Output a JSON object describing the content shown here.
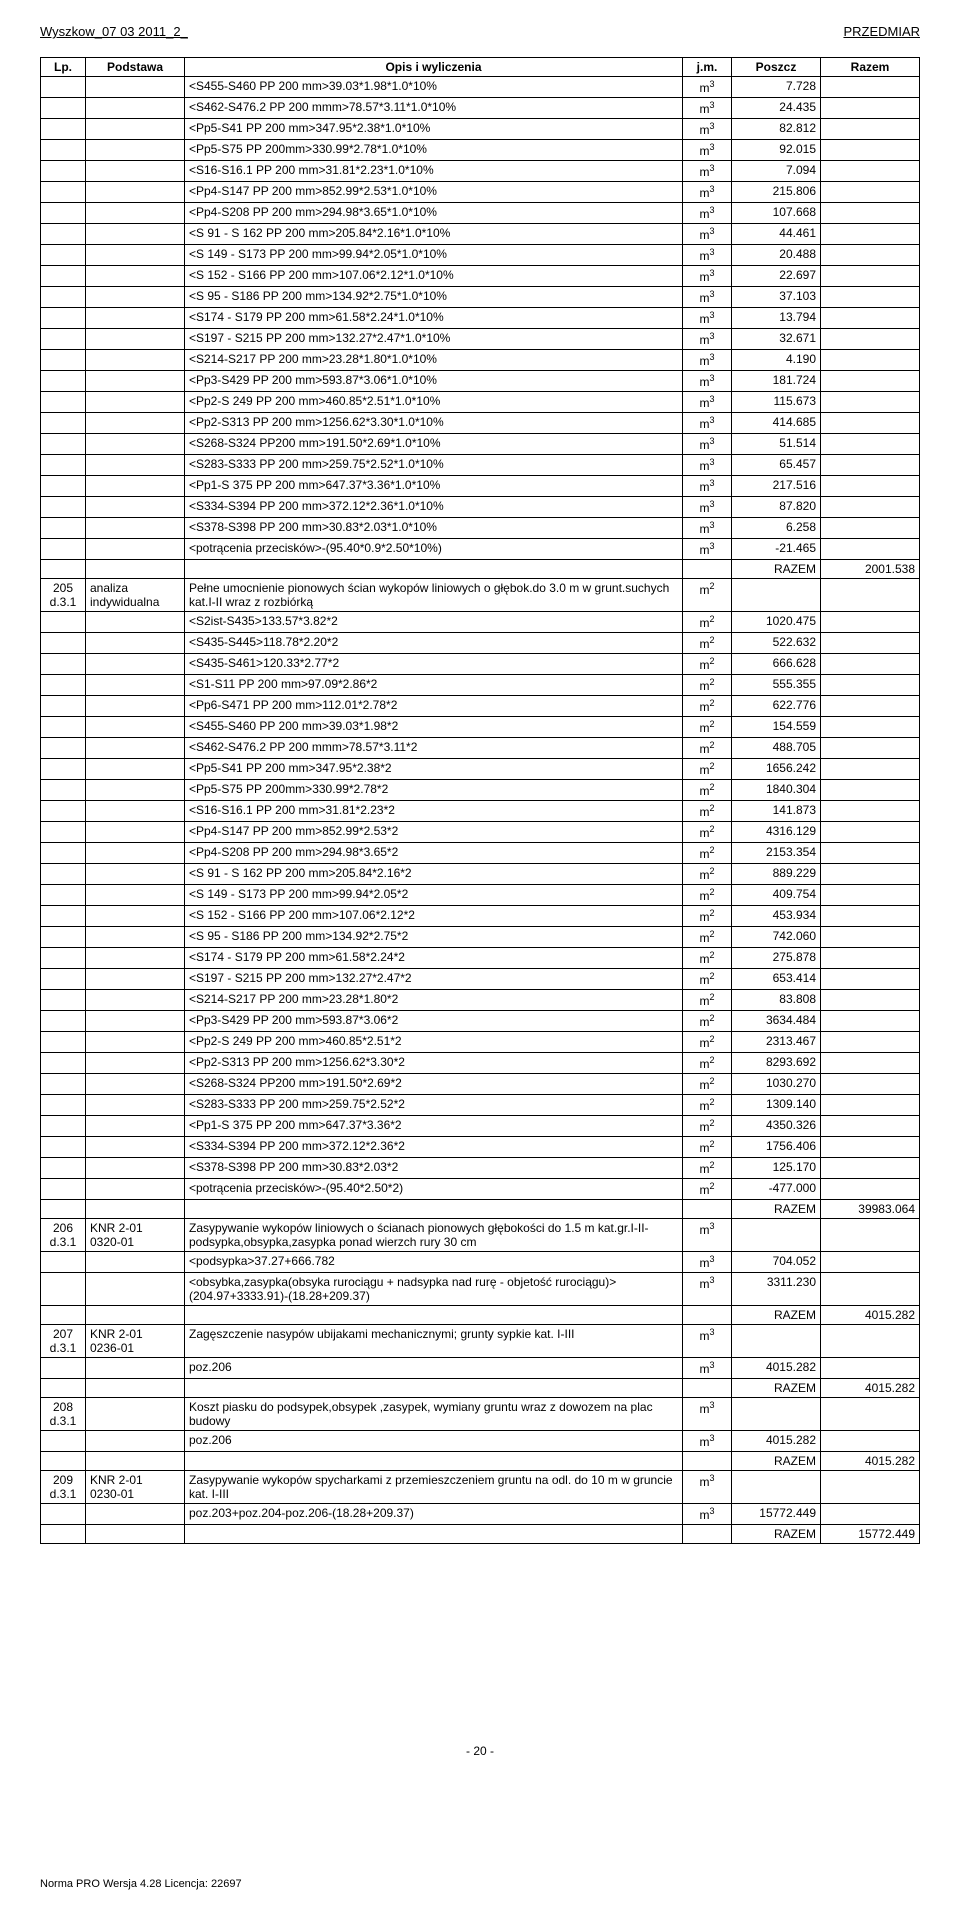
{
  "header": {
    "left": "Wyszkow_07 03 2011_2_",
    "right": "PRZEDMIAR"
  },
  "columns": [
    "Lp.",
    "Podstawa",
    "Opis i wyliczenia",
    "j.m.",
    "Poszcz",
    "Razem"
  ],
  "footer": {
    "pageNum": "- 20 -",
    "norma": "Norma PRO Wersja 4.28 Licencja: 22697"
  },
  "block0": {
    "lines": [
      {
        "o": "<S455-S460 PP 200 mm>39.03*1.98*1.0*10%",
        "jm": "m3",
        "v": "7.728"
      },
      {
        "o": "<S462-S476.2 PP 200 mmm>78.57*3.11*1.0*10%",
        "jm": "m3",
        "v": "24.435"
      },
      {
        "o": "<Pp5-S41 PP 200 mm>347.95*2.38*1.0*10%",
        "jm": "m3",
        "v": "82.812"
      },
      {
        "o": "<Pp5-S75 PP 200mm>330.99*2.78*1.0*10%",
        "jm": "m3",
        "v": "92.015"
      },
      {
        "o": "<S16-S16.1 PP 200 mm>31.81*2.23*1.0*10%",
        "jm": "m3",
        "v": "7.094"
      },
      {
        "o": "<Pp4-S147 PP 200 mm>852.99*2.53*1.0*10%",
        "jm": "m3",
        "v": "215.806"
      },
      {
        "o": "<Pp4-S208 PP 200 mm>294.98*3.65*1.0*10%",
        "jm": "m3",
        "v": "107.668"
      },
      {
        "o": "<S 91 - S 162 PP 200 mm>205.84*2.16*1.0*10%",
        "jm": "m3",
        "v": "44.461"
      },
      {
        "o": "<S 149 - S173 PP 200 mm>99.94*2.05*1.0*10%",
        "jm": "m3",
        "v": "20.488"
      },
      {
        "o": "<S 152 - S166 PP 200 mm>107.06*2.12*1.0*10%",
        "jm": "m3",
        "v": "22.697"
      },
      {
        "o": "<S 95 - S186 PP 200 mm>134.92*2.75*1.0*10%",
        "jm": "m3",
        "v": "37.103"
      },
      {
        "o": "<S174 - S179 PP 200 mm>61.58*2.24*1.0*10%",
        "jm": "m3",
        "v": "13.794"
      },
      {
        "o": "<S197 - S215 PP 200 mm>132.27*2.47*1.0*10%",
        "jm": "m3",
        "v": "32.671"
      },
      {
        "o": "<S214-S217 PP 200 mm>23.28*1.80*1.0*10%",
        "jm": "m3",
        "v": "4.190"
      },
      {
        "o": "<Pp3-S429 PP 200 mm>593.87*3.06*1.0*10%",
        "jm": "m3",
        "v": "181.724"
      },
      {
        "o": "<Pp2-S 249 PP 200 mm>460.85*2.51*1.0*10%",
        "jm": "m3",
        "v": "115.673"
      },
      {
        "o": "<Pp2-S313 PP 200 mm>1256.62*3.30*1.0*10%",
        "jm": "m3",
        "v": "414.685"
      },
      {
        "o": "<S268-S324 PP200 mm>191.50*2.69*1.0*10%",
        "jm": "m3",
        "v": "51.514"
      },
      {
        "o": "<S283-S333 PP 200 mm>259.75*2.52*1.0*10%",
        "jm": "m3",
        "v": "65.457"
      },
      {
        "o": "<Pp1-S 375 PP 200 mm>647.37*3.36*1.0*10%",
        "jm": "m3",
        "v": "217.516"
      },
      {
        "o": "<S334-S394 PP 200 mm>372.12*2.36*1.0*10%",
        "jm": "m3",
        "v": "87.820"
      },
      {
        "o": "<S378-S398 PP 200 mm>30.83*2.03*1.0*10%",
        "jm": "m3",
        "v": "6.258"
      },
      {
        "o": "<potrącenia przecisków>-(95.40*0.9*2.50*10%)",
        "jm": "m3",
        "v": "-21.465"
      }
    ],
    "razemLabel": "RAZEM",
    "razemValue": "2001.538"
  },
  "pos205": {
    "lp": "205\nd.3.1",
    "pod": "analiza indywidualna",
    "opis": "Pełne umocnienie pionowych ścian wykopów liniowych o głębok.do 3.0 m  w grunt.suchych kat.I-II wraz z rozbiórką",
    "jm": "m2",
    "lines": [
      {
        "o": "<S2ist-S435>133.57*3.82*2",
        "jm": "m2",
        "v": "1020.475"
      },
      {
        "o": "<S435-S445>118.78*2.20*2",
        "jm": "m2",
        "v": "522.632"
      },
      {
        "o": "<S435-S461>120.33*2.77*2",
        "jm": "m2",
        "v": "666.628"
      },
      {
        "o": "<S1-S11 PP 200 mm>97.09*2.86*2",
        "jm": "m2",
        "v": "555.355"
      },
      {
        "o": "<Pp6-S471 PP 200 mm>112.01*2.78*2",
        "jm": "m2",
        "v": "622.776"
      },
      {
        "o": "<S455-S460 PP 200 mm>39.03*1.98*2",
        "jm": "m2",
        "v": "154.559"
      },
      {
        "o": "<S462-S476.2 PP 200 mmm>78.57*3.11*2",
        "jm": "m2",
        "v": "488.705"
      },
      {
        "o": "<Pp5-S41 PP 200 mm>347.95*2.38*2",
        "jm": "m2",
        "v": "1656.242"
      },
      {
        "o": "<Pp5-S75 PP 200mm>330.99*2.78*2",
        "jm": "m2",
        "v": "1840.304"
      },
      {
        "o": "<S16-S16.1 PP 200 mm>31.81*2.23*2",
        "jm": "m2",
        "v": "141.873"
      },
      {
        "o": "<Pp4-S147 PP 200 mm>852.99*2.53*2",
        "jm": "m2",
        "v": "4316.129"
      },
      {
        "o": "<Pp4-S208 PP 200 mm>294.98*3.65*2",
        "jm": "m2",
        "v": "2153.354"
      },
      {
        "o": "<S 91 - S 162 PP 200 mm>205.84*2.16*2",
        "jm": "m2",
        "v": "889.229"
      },
      {
        "o": "<S 149 - S173 PP 200 mm>99.94*2.05*2",
        "jm": "m2",
        "v": "409.754"
      },
      {
        "o": "<S 152 - S166 PP 200 mm>107.06*2.12*2",
        "jm": "m2",
        "v": "453.934"
      },
      {
        "o": "<S 95 - S186 PP 200 mm>134.92*2.75*2",
        "jm": "m2",
        "v": "742.060"
      },
      {
        "o": "<S174 - S179 PP 200 mm>61.58*2.24*2",
        "jm": "m2",
        "v": "275.878"
      },
      {
        "o": "<S197 - S215 PP 200 mm>132.27*2.47*2",
        "jm": "m2",
        "v": "653.414"
      },
      {
        "o": "<S214-S217 PP 200 mm>23.28*1.80*2",
        "jm": "m2",
        "v": "83.808"
      },
      {
        "o": "<Pp3-S429 PP 200 mm>593.87*3.06*2",
        "jm": "m2",
        "v": "3634.484"
      },
      {
        "o": "<Pp2-S 249 PP 200 mm>460.85*2.51*2",
        "jm": "m2",
        "v": "2313.467"
      },
      {
        "o": "<Pp2-S313 PP 200 mm>1256.62*3.30*2",
        "jm": "m2",
        "v": "8293.692"
      },
      {
        "o": "<S268-S324 PP200 mm>191.50*2.69*2",
        "jm": "m2",
        "v": "1030.270"
      },
      {
        "o": "<S283-S333 PP 200 mm>259.75*2.52*2",
        "jm": "m2",
        "v": "1309.140"
      },
      {
        "o": "<Pp1-S 375 PP 200 mm>647.37*3.36*2",
        "jm": "m2",
        "v": "4350.326"
      },
      {
        "o": "<S334-S394 PP 200 mm>372.12*2.36*2",
        "jm": "m2",
        "v": "1756.406"
      },
      {
        "o": "<S378-S398 PP 200 mm>30.83*2.03*2",
        "jm": "m2",
        "v": "125.170"
      },
      {
        "o": "<potrącenia przecisków>-(95.40*2.50*2)",
        "jm": "m2",
        "v": "-477.000"
      }
    ],
    "razemLabel": "RAZEM",
    "razemValue": "39983.064"
  },
  "pos206": {
    "lp": "206\nd.3.1",
    "pod": "KNR 2-01\n0320-01",
    "opis": "Zasypywanie wykopów liniowych o ścianach pionowych głębokości do 1.5 m kat.gr.I-II-podsypka,obsypka,zasypka ponad wierzch rury 30 cm",
    "jm": "m3",
    "lines": [
      {
        "o": "<podsypka>37.27+666.782",
        "jm": "m3",
        "v": "704.052"
      },
      {
        "o": "<obsybka,zasypka(obsyka rurociągu + nadsypka nad rurę - objetość rurociągu)> (204.97+3333.91)-(18.28+209.37)",
        "jm": "m3",
        "v": "3311.230"
      }
    ],
    "razemLabel": "RAZEM",
    "razemValue": "4015.282"
  },
  "pos207": {
    "lp": "207\nd.3.1",
    "pod": "KNR 2-01\n0236-01",
    "opis": "Zagęszczenie nasypów ubijakami mechanicznymi; grunty sypkie kat. I-III",
    "jm": "m3",
    "lines": [
      {
        "o": "poz.206",
        "jm": "m3",
        "v": "4015.282"
      }
    ],
    "razemLabel": "RAZEM",
    "razemValue": "4015.282"
  },
  "pos208": {
    "lp": "208\nd.3.1",
    "pod": "",
    "opis": "Koszt piasku  do podsypek,obsypek ,zasypek, wymiany gruntu wraz z dowozem na plac  budowy",
    "jm": "m3",
    "lines": [
      {
        "o": "poz.206",
        "jm": "m3",
        "v": "4015.282"
      }
    ],
    "razemLabel": "RAZEM",
    "razemValue": "4015.282"
  },
  "pos209": {
    "lp": "209\nd.3.1",
    "pod": "KNR 2-01\n0230-01",
    "opis": "Zasypywanie wykopów spycharkami z przemieszczeniem gruntu na odl. do 10 m w gruncie kat. I-III",
    "jm": "m3",
    "lines": [
      {
        "o": "poz.203+poz.204-poz.206-(18.28+209.37)",
        "jm": "m3",
        "v": "15772.449"
      }
    ],
    "razemLabel": "RAZEM",
    "razemValue": "15772.449"
  }
}
